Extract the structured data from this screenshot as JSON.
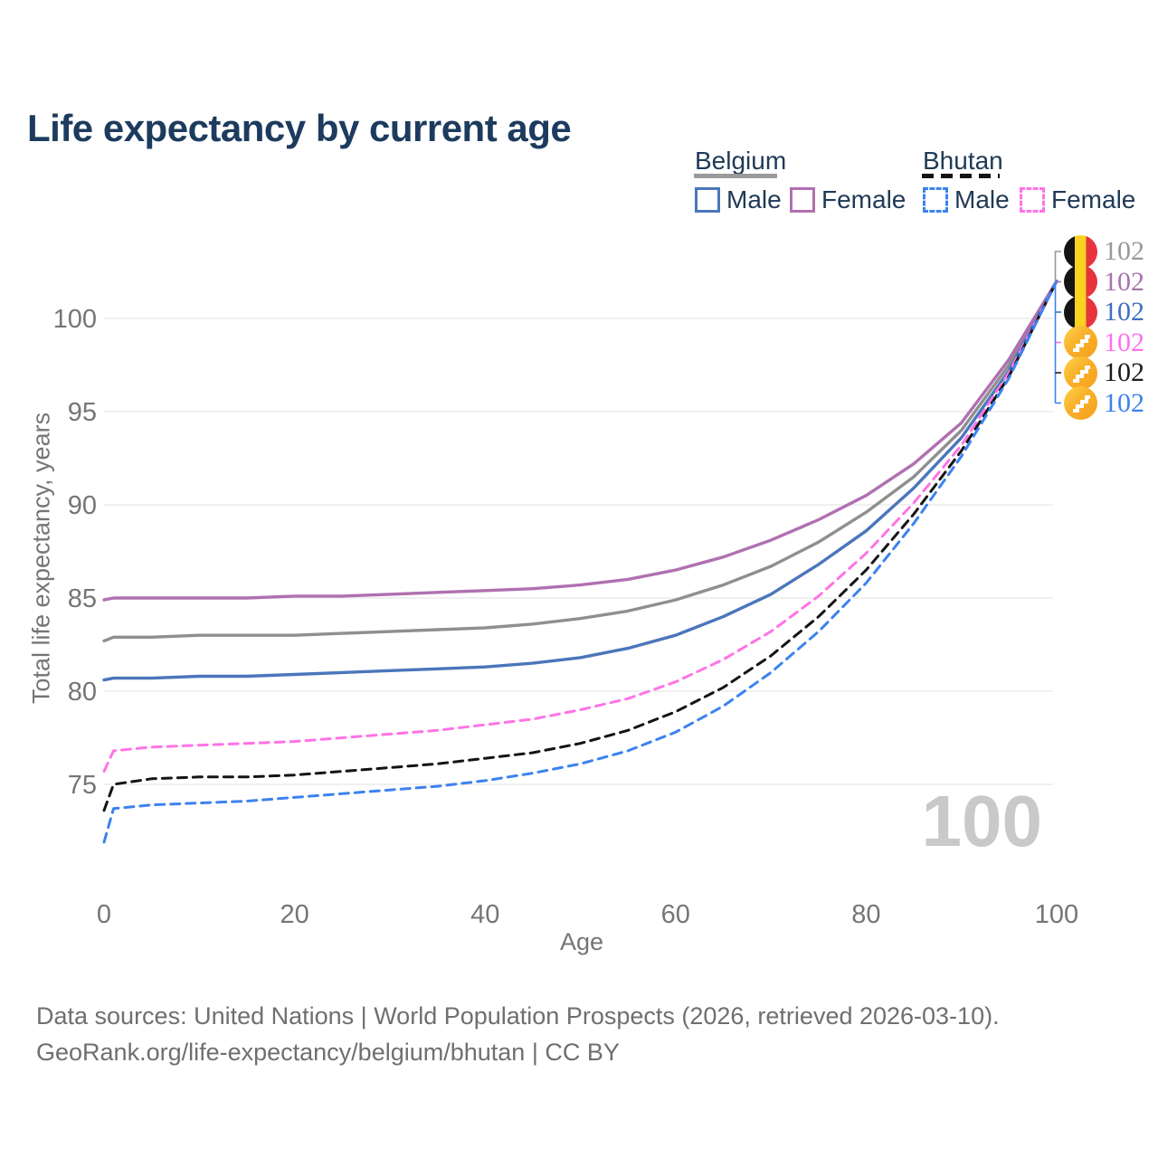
{
  "title": "Life expectancy by current age",
  "legend": {
    "belgium": {
      "label": "Belgium",
      "male_label": "Male",
      "female_label": "Female",
      "line_style": "solid",
      "line_color": "#9a9a9a",
      "male_color": "#4a76bb",
      "female_color": "#b070b0"
    },
    "bhutan": {
      "label": "Bhutan",
      "male_label": "Male",
      "female_label": "Female",
      "line_style": "dashed",
      "line_color": "#141414",
      "male_color": "#3c82f0",
      "female_color": "#ff73e6"
    }
  },
  "chart_data": {
    "type": "line",
    "title": "Life expectancy by current age",
    "xlabel": "Age",
    "ylabel": "Total life expectancy, years",
    "xlim": [
      0,
      100
    ],
    "ylim": [
      71,
      103
    ],
    "xticks": [
      0,
      20,
      40,
      60,
      80,
      100
    ],
    "yticks": [
      75,
      80,
      85,
      90,
      95,
      100
    ],
    "grid": "horizontal",
    "legend_position": "top-right",
    "x": [
      0,
      1,
      5,
      10,
      15,
      20,
      25,
      30,
      35,
      40,
      45,
      50,
      55,
      60,
      65,
      70,
      75,
      80,
      85,
      90,
      95,
      100
    ],
    "series": [
      {
        "name": "Belgium both sexes",
        "country": "Belgium",
        "sex": "both",
        "style": "solid",
        "color": "#8f8f8f",
        "values": [
          82.7,
          82.9,
          82.9,
          83.0,
          83.0,
          83.0,
          83.1,
          83.2,
          83.3,
          83.4,
          83.6,
          83.9,
          84.3,
          84.9,
          85.7,
          86.7,
          88.0,
          89.6,
          91.5,
          94.0,
          97.5,
          102
        ]
      },
      {
        "name": "Belgium Female",
        "country": "Belgium",
        "sex": "female",
        "style": "solid",
        "color": "#b070b0",
        "values": [
          84.9,
          85.0,
          85.0,
          85.0,
          85.0,
          85.1,
          85.1,
          85.2,
          85.3,
          85.4,
          85.5,
          85.7,
          86.0,
          86.5,
          87.2,
          88.1,
          89.2,
          90.5,
          92.2,
          94.4,
          97.8,
          102
        ]
      },
      {
        "name": "Belgium Male",
        "country": "Belgium",
        "sex": "male",
        "style": "solid",
        "color": "#4a76bb",
        "values": [
          80.6,
          80.7,
          80.7,
          80.8,
          80.8,
          80.9,
          81.0,
          81.1,
          81.2,
          81.3,
          81.5,
          81.8,
          82.3,
          83.0,
          84.0,
          85.2,
          86.8,
          88.6,
          90.9,
          93.6,
          97.2,
          102
        ]
      },
      {
        "name": "Bhutan Female",
        "country": "Bhutan",
        "sex": "female",
        "style": "dashed",
        "color": "#ff73e6",
        "values": [
          75.7,
          76.8,
          77.0,
          77.1,
          77.2,
          77.3,
          77.5,
          77.7,
          77.9,
          78.2,
          78.5,
          79.0,
          79.6,
          80.5,
          81.7,
          83.2,
          85.1,
          87.4,
          90.1,
          93.2,
          97.1,
          102
        ]
      },
      {
        "name": "Bhutan both sexes",
        "country": "Bhutan",
        "sex": "both",
        "style": "dashed",
        "color": "#141414",
        "values": [
          73.6,
          75.0,
          75.3,
          75.4,
          75.4,
          75.5,
          75.7,
          75.9,
          76.1,
          76.4,
          76.7,
          77.2,
          77.9,
          78.9,
          80.2,
          81.9,
          84.0,
          86.5,
          89.5,
          92.9,
          96.9,
          102
        ]
      },
      {
        "name": "Bhutan Male",
        "country": "Bhutan",
        "sex": "male",
        "style": "dashed",
        "color": "#3c82f0",
        "values": [
          71.9,
          73.7,
          73.9,
          74.0,
          74.1,
          74.3,
          74.5,
          74.7,
          74.9,
          75.2,
          75.6,
          76.1,
          76.8,
          77.8,
          79.2,
          81.0,
          83.2,
          85.8,
          89.0,
          92.6,
          96.8,
          102
        ]
      }
    ]
  },
  "end_labels": [
    {
      "flag": "belgium",
      "value": "102",
      "color": "#999999"
    },
    {
      "flag": "belgium",
      "value": "102",
      "color": "#a873ae"
    },
    {
      "flag": "belgium",
      "value": "102",
      "color": "#3e6fc0"
    },
    {
      "flag": "bhutan",
      "value": "102",
      "color": "#ff70f0"
    },
    {
      "flag": "bhutan",
      "value": "102",
      "color": "#1c1c1c"
    },
    {
      "flag": "bhutan",
      "value": "102",
      "color": "#3c82f0"
    }
  ],
  "watermark": "100",
  "footer": {
    "line1": "Data sources: United Nations | World Population Prospects (2026, retrieved 2026-03-10).",
    "line2": "GeoRank.org/life-expectancy/belgium/bhutan | CC BY"
  },
  "palette": {
    "title": "#1d3b5e",
    "axis_text": "#757575",
    "gridline": "#e7e7e7",
    "watermark": "#c9c9c9",
    "footer_text": "#6f6f6f"
  }
}
